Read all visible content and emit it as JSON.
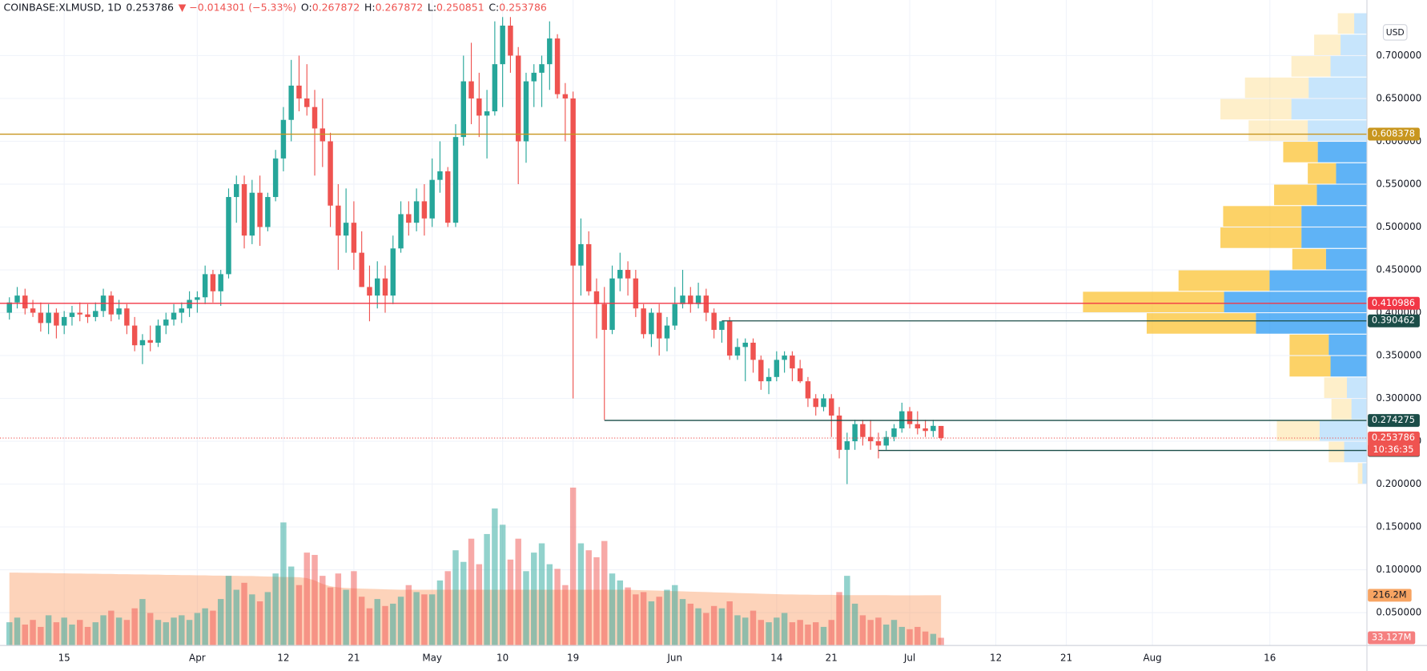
{
  "chart_data": {
    "type": "candlestick",
    "header": {
      "symbol": "COINBASE:XLMUSD, 1D",
      "last": "0.253786",
      "change": "▼ −0.014301 (−5.33%)",
      "ohlc": [
        {
          "label": "O:",
          "value": "0.267872"
        },
        {
          "label": "H:",
          "value": "0.267872"
        },
        {
          "label": "L:",
          "value": "0.250851"
        },
        {
          "label": "C:",
          "value": "0.253786"
        }
      ]
    },
    "currency": "USD",
    "up_color": "#26a69a",
    "down_color": "#ef5350",
    "candles": [
      [
        0.4,
        0.418,
        0.392,
        0.412
      ],
      [
        0.412,
        0.43,
        0.405,
        0.42
      ],
      [
        0.42,
        0.428,
        0.398,
        0.405
      ],
      [
        0.405,
        0.415,
        0.395,
        0.4
      ],
      [
        0.4,
        0.412,
        0.378,
        0.388
      ],
      [
        0.388,
        0.41,
        0.375,
        0.4
      ],
      [
        0.4,
        0.405,
        0.37,
        0.385
      ],
      [
        0.385,
        0.402,
        0.375,
        0.395
      ],
      [
        0.395,
        0.408,
        0.385,
        0.4
      ],
      [
        0.4,
        0.412,
        0.39,
        0.398
      ],
      [
        0.398,
        0.41,
        0.388,
        0.395
      ],
      [
        0.395,
        0.412,
        0.39,
        0.402
      ],
      [
        0.402,
        0.428,
        0.395,
        0.42
      ],
      [
        0.42,
        0.425,
        0.39,
        0.398
      ],
      [
        0.398,
        0.415,
        0.392,
        0.405
      ],
      [
        0.405,
        0.41,
        0.375,
        0.385
      ],
      [
        0.385,
        0.395,
        0.355,
        0.362
      ],
      [
        0.362,
        0.375,
        0.34,
        0.368
      ],
      [
        0.368,
        0.385,
        0.355,
        0.365
      ],
      [
        0.365,
        0.392,
        0.36,
        0.385
      ],
      [
        0.385,
        0.4,
        0.375,
        0.392
      ],
      [
        0.392,
        0.41,
        0.385,
        0.4
      ],
      [
        0.4,
        0.412,
        0.388,
        0.405
      ],
      [
        0.405,
        0.425,
        0.395,
        0.415
      ],
      [
        0.415,
        0.425,
        0.4,
        0.418
      ],
      [
        0.418,
        0.455,
        0.41,
        0.445
      ],
      [
        0.445,
        0.45,
        0.412,
        0.425
      ],
      [
        0.425,
        0.45,
        0.408,
        0.445
      ],
      [
        0.445,
        0.545,
        0.44,
        0.535
      ],
      [
        0.535,
        0.56,
        0.505,
        0.55
      ],
      [
        0.55,
        0.56,
        0.475,
        0.49
      ],
      [
        0.49,
        0.555,
        0.48,
        0.54
      ],
      [
        0.54,
        0.56,
        0.478,
        0.5
      ],
      [
        0.5,
        0.54,
        0.495,
        0.535
      ],
      [
        0.535,
        0.59,
        0.53,
        0.58
      ],
      [
        0.58,
        0.64,
        0.565,
        0.625
      ],
      [
        0.625,
        0.695,
        0.6,
        0.665
      ],
      [
        0.665,
        0.7,
        0.635,
        0.65
      ],
      [
        0.65,
        0.69,
        0.63,
        0.64
      ],
      [
        0.64,
        0.66,
        0.56,
        0.615
      ],
      [
        0.615,
        0.65,
        0.57,
        0.6
      ],
      [
        0.6,
        0.61,
        0.5,
        0.525
      ],
      [
        0.525,
        0.55,
        0.45,
        0.49
      ],
      [
        0.49,
        0.545,
        0.47,
        0.505
      ],
      [
        0.505,
        0.53,
        0.45,
        0.47
      ],
      [
        0.47,
        0.495,
        0.43,
        0.43
      ],
      [
        0.43,
        0.455,
        0.39,
        0.42
      ],
      [
        0.42,
        0.46,
        0.405,
        0.44
      ],
      [
        0.44,
        0.455,
        0.4,
        0.42
      ],
      [
        0.42,
        0.49,
        0.41,
        0.475
      ],
      [
        0.475,
        0.53,
        0.47,
        0.515
      ],
      [
        0.515,
        0.53,
        0.49,
        0.505
      ],
      [
        0.505,
        0.545,
        0.495,
        0.53
      ],
      [
        0.53,
        0.55,
        0.49,
        0.51
      ],
      [
        0.51,
        0.58,
        0.5,
        0.555
      ],
      [
        0.555,
        0.6,
        0.54,
        0.565
      ],
      [
        0.565,
        0.57,
        0.5,
        0.505
      ],
      [
        0.505,
        0.62,
        0.5,
        0.605
      ],
      [
        0.605,
        0.7,
        0.595,
        0.67
      ],
      [
        0.67,
        0.715,
        0.62,
        0.65
      ],
      [
        0.65,
        0.68,
        0.605,
        0.63
      ],
      [
        0.63,
        0.66,
        0.58,
        0.635
      ],
      [
        0.635,
        0.74,
        0.63,
        0.69
      ],
      [
        0.69,
        0.745,
        0.64,
        0.735
      ],
      [
        0.735,
        0.745,
        0.68,
        0.7
      ],
      [
        0.7,
        0.71,
        0.55,
        0.6
      ],
      [
        0.6,
        0.68,
        0.575,
        0.67
      ],
      [
        0.67,
        0.69,
        0.64,
        0.68
      ],
      [
        0.68,
        0.7,
        0.64,
        0.69
      ],
      [
        0.69,
        0.74,
        0.66,
        0.72
      ],
      [
        0.72,
        0.725,
        0.65,
        0.655
      ],
      [
        0.655,
        0.668,
        0.6,
        0.65
      ],
      [
        0.65,
        0.658,
        0.3,
        0.455
      ],
      [
        0.455,
        0.51,
        0.42,
        0.48
      ],
      [
        0.48,
        0.495,
        0.42,
        0.425
      ],
      [
        0.425,
        0.44,
        0.37,
        0.41
      ],
      [
        0.41,
        0.43,
        0.275,
        0.38
      ],
      [
        0.38,
        0.455,
        0.375,
        0.44
      ],
      [
        0.44,
        0.47,
        0.425,
        0.45
      ],
      [
        0.45,
        0.46,
        0.42,
        0.44
      ],
      [
        0.44,
        0.45,
        0.395,
        0.405
      ],
      [
        0.405,
        0.41,
        0.37,
        0.375
      ],
      [
        0.375,
        0.405,
        0.36,
        0.4
      ],
      [
        0.4,
        0.41,
        0.35,
        0.37
      ],
      [
        0.37,
        0.395,
        0.355,
        0.385
      ],
      [
        0.385,
        0.43,
        0.38,
        0.41
      ],
      [
        0.41,
        0.45,
        0.405,
        0.42
      ],
      [
        0.42,
        0.43,
        0.4,
        0.41
      ],
      [
        0.41,
        0.435,
        0.405,
        0.42
      ],
      [
        0.42,
        0.428,
        0.39,
        0.4
      ],
      [
        0.4,
        0.405,
        0.37,
        0.38
      ],
      [
        0.38,
        0.39,
        0.365,
        0.39
      ],
      [
        0.39,
        0.395,
        0.345,
        0.35
      ],
      [
        0.35,
        0.37,
        0.345,
        0.36
      ],
      [
        0.36,
        0.37,
        0.32,
        0.365
      ],
      [
        0.365,
        0.37,
        0.33,
        0.345
      ],
      [
        0.345,
        0.35,
        0.31,
        0.32
      ],
      [
        0.32,
        0.335,
        0.305,
        0.325
      ],
      [
        0.325,
        0.355,
        0.32,
        0.345
      ],
      [
        0.345,
        0.355,
        0.33,
        0.35
      ],
      [
        0.35,
        0.355,
        0.32,
        0.335
      ],
      [
        0.335,
        0.345,
        0.318,
        0.32
      ],
      [
        0.32,
        0.325,
        0.29,
        0.3
      ],
      [
        0.3,
        0.305,
        0.28,
        0.29
      ],
      [
        0.29,
        0.305,
        0.285,
        0.3
      ],
      [
        0.3,
        0.305,
        0.255,
        0.28
      ],
      [
        0.28,
        0.29,
        0.23,
        0.24
      ],
      [
        0.24,
        0.26,
        0.2,
        0.25
      ],
      [
        0.25,
        0.275,
        0.24,
        0.27
      ],
      [
        0.27,
        0.275,
        0.245,
        0.255
      ],
      [
        0.255,
        0.275,
        0.24,
        0.25
      ],
      [
        0.25,
        0.26,
        0.23,
        0.245
      ],
      [
        0.245,
        0.262,
        0.24,
        0.255
      ],
      [
        0.255,
        0.27,
        0.25,
        0.265
      ],
      [
        0.265,
        0.295,
        0.26,
        0.285
      ],
      [
        0.285,
        0.29,
        0.265,
        0.27
      ],
      [
        0.27,
        0.285,
        0.258,
        0.265
      ],
      [
        0.265,
        0.275,
        0.255,
        0.262
      ],
      [
        0.262,
        0.275,
        0.255,
        0.268
      ],
      [
        0.267872,
        0.267872,
        0.250851,
        0.253786
      ]
    ],
    "volume": [
      100000000.0,
      120000000.0,
      90000000.0,
      110000000.0,
      80000000.0,
      130000000.0,
      100000000.0,
      120000000.0,
      90000000.0,
      110000000.0,
      80000000.0,
      100000000.0,
      130000000.0,
      150000000.0,
      120000000.0,
      110000000.0,
      160000000.0,
      200000000.0,
      140000000.0,
      110000000.0,
      100000000.0,
      120000000.0,
      130000000.0,
      110000000.0,
      140000000.0,
      160000000.0,
      150000000.0,
      200000000.0,
      300000000.0,
      240000000.0,
      270000000.0,
      220000000.0,
      190000000.0,
      230000000.0,
      310000000.0,
      530000000.0,
      340000000.0,
      260000000.0,
      400000000.0,
      390000000.0,
      300000000.0,
      250000000.0,
      310000000.0,
      240000000.0,
      320000000.0,
      210000000.0,
      160000000.0,
      200000000.0,
      170000000.0,
      180000000.0,
      210000000.0,
      260000000.0,
      230000000.0,
      220000000.0,
      220000000.0,
      280000000.0,
      320000000.0,
      410000000.0,
      360000000.0,
      460000000.0,
      350000000.0,
      480000000.0,
      590000000.0,
      520000000.0,
      370000000.0,
      460000000.0,
      320000000.0,
      400000000.0,
      440000000.0,
      350000000.0,
      330000000.0,
      260000000.0,
      680000000.0,
      440000000.0,
      410000000.0,
      380000000.0,
      450000000.0,
      310000000.0,
      280000000.0,
      250000000.0,
      220000000.0,
      230000000.0,
      190000000.0,
      210000000.0,
      240000000.0,
      260000000.0,
      200000000.0,
      180000000.0,
      160000000.0,
      140000000.0,
      170000000.0,
      160000000.0,
      190000000.0,
      130000000.0,
      120000000.0,
      150000000.0,
      110000000.0,
      100000000.0,
      120000000.0,
      140000000.0,
      100000000.0,
      110000000.0,
      90000000.0,
      100000000.0,
      80000000.0,
      110000000.0,
      230000000.0,
      300000000.0,
      180000000.0,
      130000000.0,
      110000000.0,
      120000000.0,
      90000000.0,
      110000000.0,
      80000000.0,
      70000000.0,
      80000000.0,
      60000000.0,
      50000000.0,
      33127000.0
    ],
    "volume_ma": [
      314000000.0,
      314000000.0,
      313000000.0,
      313000000.0,
      312000000.0,
      312000000.0,
      311000000.0,
      311000000.0,
      310000000.0,
      310000000.0,
      309000000.0,
      309000000.0,
      308000000.0,
      308000000.0,
      307000000.0,
      307000000.0,
      306000000.0,
      306000000.0,
      305000000.0,
      305000000.0,
      304000000.0,
      304000000.0,
      303000000.0,
      303000000.0,
      302000000.0,
      302000000.0,
      301000000.0,
      301000000.0,
      300000000.0,
      300000000.0,
      299000000.0,
      299000000.0,
      298000000.0,
      297000000.0,
      296000000.0,
      295000000.0,
      295000000.0,
      294000000.0,
      290000000.0,
      280000000.0,
      265000000.0,
      255000000.0,
      250000000.0,
      248000000.0,
      246000000.0,
      245000000.0,
      244000000.0,
      243000000.0,
      242000000.0,
      241000000.0,
      240000000.0,
      240000000.0,
      240000000.0,
      240000000.0,
      240000000.0,
      240000000.0,
      240000000.0,
      240000000.0,
      240000000.0,
      240000000.0,
      240000000.0,
      240000000.0,
      240000000.0,
      240000000.0,
      240000000.0,
      240000000.0,
      240000000.0,
      240000000.0,
      240000000.0,
      240000000.0,
      240000000.0,
      240000000.0,
      240000000.0,
      240000000.0,
      240000000.0,
      240000000.0,
      240000000.0,
      240000000.0,
      240000000.0,
      240000000.0,
      239000000.0,
      238000000.0,
      237000000.0,
      236000000.0,
      235000000.0,
      234000000.0,
      233000000.0,
      232000000.0,
      231000000.0,
      230000000.0,
      229000000.0,
      228000000.0,
      227000000.0,
      226000000.0,
      225000000.0,
      224000000.0,
      223000000.0,
      222000000.0,
      221000000.0,
      220000000.0,
      220000000.0,
      219000000.0,
      219000000.0,
      218000000.0,
      218000000.0,
      218000000.0,
      217000000.0,
      217000000.0,
      217000000.0,
      217000000.0,
      217000000.0,
      217000000.0,
      217000000.0,
      216000000.0,
      216000000.0,
      216000000.0,
      216000000.0,
      216200000.0,
      216200000.0,
      216200000.0
    ],
    "volume_labels": {
      "ma": "216.2M",
      "last": "33.127M"
    },
    "vlim": [
      0,
      2780000000.0
    ],
    "xlim": [
      -1.2,
      173.4
    ],
    "xticks": [
      {
        "value": 7,
        "label": "15"
      },
      {
        "value": 24,
        "label": "Apr"
      },
      {
        "value": 35,
        "label": "12"
      },
      {
        "value": 44,
        "label": "21"
      },
      {
        "value": 54,
        "label": "May"
      },
      {
        "value": 63,
        "label": "10"
      },
      {
        "value": 72,
        "label": "19"
      },
      {
        "value": 85,
        "label": "Jun"
      },
      {
        "value": 98,
        "label": "14"
      },
      {
        "value": 105,
        "label": "21"
      },
      {
        "value": 115,
        "label": "Jul"
      },
      {
        "value": 126,
        "label": "12"
      },
      {
        "value": 135,
        "label": "21"
      },
      {
        "value": 146,
        "label": "Aug"
      },
      {
        "value": 161,
        "label": "16"
      }
    ],
    "ylim": [
      0.0117,
      0.7649
    ],
    "yticks": [
      {
        "value": 0.05,
        "label": "0.050000"
      },
      {
        "value": 0.1,
        "label": "0.100000"
      },
      {
        "value": 0.15,
        "label": "0.150000"
      },
      {
        "value": 0.2,
        "label": "0.200000"
      },
      {
        "value": 0.25,
        "label": "0.250000"
      },
      {
        "value": 0.3,
        "label": "0.300000"
      },
      {
        "value": 0.35,
        "label": "0.350000"
      },
      {
        "value": 0.4,
        "label": "0.400000"
      },
      {
        "value": 0.45,
        "label": "0.450000"
      },
      {
        "value": 0.5,
        "label": "0.500000"
      },
      {
        "value": 0.55,
        "label": "0.550000"
      },
      {
        "value": 0.6,
        "label": "0.600000"
      },
      {
        "value": 0.65,
        "label": "0.650000"
      },
      {
        "value": 0.7,
        "label": "0.700000"
      }
    ],
    "grid": true,
    "levels": [
      {
        "value": 0.608378,
        "color": "#c8961e"
      },
      {
        "value": 0.410986,
        "color": "#f23645"
      },
      {
        "value": 0.390462,
        "color": "#1b4d48",
        "start": 91
      },
      {
        "value": 0.274275,
        "color": "#1b4d48",
        "start": 76
      },
      {
        "value": 0.239285,
        "color": "#1b4d48",
        "start": 111
      }
    ],
    "last_price": {
      "value": 0.253786,
      "countdown": "10:36:35",
      "color": "#ef5350"
    },
    "profile": {
      "row_size": 0.025,
      "value_area": [
        0.325,
        0.6
      ],
      "up_color": "#2196f3",
      "down_color": "#fbc02d",
      "rows": [
        {
          "low": 0.725,
          "up": 14,
          "down": 18
        },
        {
          "low": 0.7,
          "up": 29,
          "down": 29
        },
        {
          "low": 0.675,
          "up": 40,
          "down": 43
        },
        {
          "low": 0.65,
          "up": 64,
          "down": 70
        },
        {
          "low": 0.625,
          "up": 83,
          "down": 78
        },
        {
          "low": 0.6,
          "up": 65,
          "down": 65
        },
        {
          "low": 0.575,
          "up": 54,
          "down": 38
        },
        {
          "low": 0.55,
          "up": 34,
          "down": 31
        },
        {
          "low": 0.525,
          "up": 55,
          "down": 47
        },
        {
          "low": 0.5,
          "up": 72,
          "down": 86
        },
        {
          "low": 0.475,
          "up": 72,
          "down": 89
        },
        {
          "low": 0.45,
          "up": 45,
          "down": 37
        },
        {
          "low": 0.425,
          "up": 107,
          "down": 100
        },
        {
          "low": 0.4,
          "up": 157,
          "down": 155
        },
        {
          "low": 0.375,
          "up": 122,
          "down": 120
        },
        {
          "low": 0.35,
          "up": 42,
          "down": 43
        },
        {
          "low": 0.325,
          "up": 40,
          "down": 45
        },
        {
          "low": 0.3,
          "up": 22,
          "down": 25
        },
        {
          "low": 0.275,
          "up": 17,
          "down": 22
        },
        {
          "low": 0.25,
          "up": 52,
          "down": 47
        },
        {
          "low": 0.225,
          "up": 25,
          "down": 17
        },
        {
          "low": 0.2,
          "up": 5,
          "down": 5
        }
      ]
    }
  }
}
